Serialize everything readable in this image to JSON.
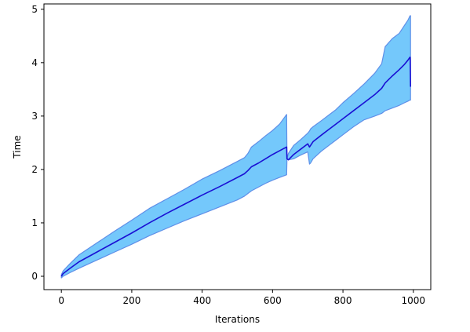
{
  "chart_data": {
    "type": "area",
    "title": "",
    "xlabel": "Iterations",
    "ylabel": "Time",
    "xlim": [
      -49.5,
      1049.5
    ],
    "ylim": [
      -0.25,
      5.1
    ],
    "xticks": [
      0,
      200,
      400,
      600,
      800,
      1000
    ],
    "yticks": [
      0,
      1,
      2,
      3,
      4,
      5
    ],
    "grid": false,
    "legend": "none",
    "colors": {
      "mean_line": "#1a10d4",
      "band_fill": "#74c8fb",
      "band_edge": "#5f8fe8"
    },
    "series": [
      {
        "x": [
          0,
          5,
          25,
          50,
          100,
          150,
          200,
          250,
          300,
          350,
          400,
          450,
          500,
          520,
          530,
          540,
          560,
          580,
          600,
          620,
          640,
          641,
          645,
          660,
          680,
          700,
          705,
          708,
          715,
          740,
          760,
          780,
          800,
          830,
          860,
          890,
          910,
          920,
          940,
          960,
          975,
          985,
          990,
          991,
          992
        ],
        "mean": [
          0.0,
          0.05,
          0.15,
          0.27,
          0.45,
          0.63,
          0.81,
          1.0,
          1.18,
          1.35,
          1.52,
          1.68,
          1.85,
          1.92,
          1.98,
          2.05,
          2.12,
          2.2,
          2.28,
          2.35,
          2.42,
          2.2,
          2.18,
          2.28,
          2.38,
          2.48,
          2.42,
          2.45,
          2.52,
          2.65,
          2.75,
          2.85,
          2.95,
          3.1,
          3.25,
          3.4,
          3.52,
          3.62,
          3.75,
          3.87,
          3.97,
          4.05,
          4.1,
          4.1,
          3.55
        ],
        "lower": [
          -0.03,
          0.0,
          0.07,
          0.15,
          0.3,
          0.45,
          0.6,
          0.76,
          0.9,
          1.04,
          1.17,
          1.3,
          1.43,
          1.5,
          1.55,
          1.6,
          1.67,
          1.74,
          1.8,
          1.85,
          1.9,
          2.2,
          2.18,
          2.2,
          2.27,
          2.33,
          2.1,
          2.12,
          2.2,
          2.35,
          2.45,
          2.55,
          2.65,
          2.8,
          2.93,
          3.0,
          3.05,
          3.1,
          3.15,
          3.2,
          3.25,
          3.28,
          3.3,
          3.3,
          3.3
        ],
        "upper": [
          0.03,
          0.1,
          0.24,
          0.4,
          0.62,
          0.84,
          1.05,
          1.27,
          1.45,
          1.63,
          1.82,
          1.98,
          2.15,
          2.22,
          2.3,
          2.42,
          2.52,
          2.63,
          2.73,
          2.85,
          3.03,
          2.2,
          2.3,
          2.45,
          2.56,
          2.68,
          2.72,
          2.76,
          2.8,
          2.92,
          3.02,
          3.12,
          3.25,
          3.42,
          3.6,
          3.8,
          3.98,
          4.3,
          4.45,
          4.55,
          4.7,
          4.8,
          4.87,
          4.88,
          4.88
        ]
      }
    ]
  }
}
